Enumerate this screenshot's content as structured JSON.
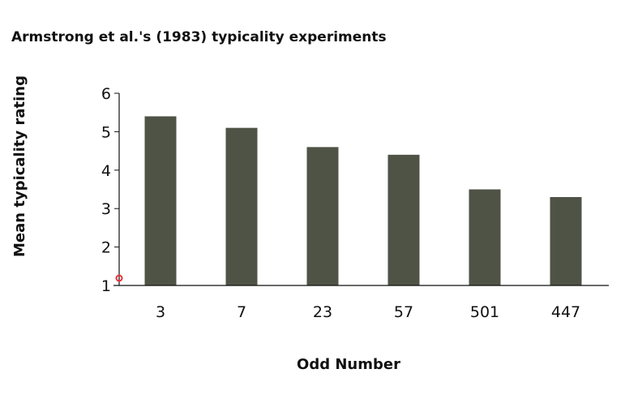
{
  "chart_data": {
    "type": "bar",
    "title": "Armstrong et al.'s (1983) typicality experiments",
    "xlabel": "Odd Number",
    "ylabel": "Mean typicality rating",
    "categories": [
      "3",
      "7",
      "23",
      "57",
      "501",
      "447"
    ],
    "values": [
      5.4,
      5.1,
      4.6,
      4.4,
      3.5,
      3.3
    ],
    "ylim": [
      1,
      6
    ],
    "yticks": [
      1,
      2,
      3,
      4,
      5,
      6
    ],
    "grid": false,
    "bar_color": "#4f5346"
  }
}
